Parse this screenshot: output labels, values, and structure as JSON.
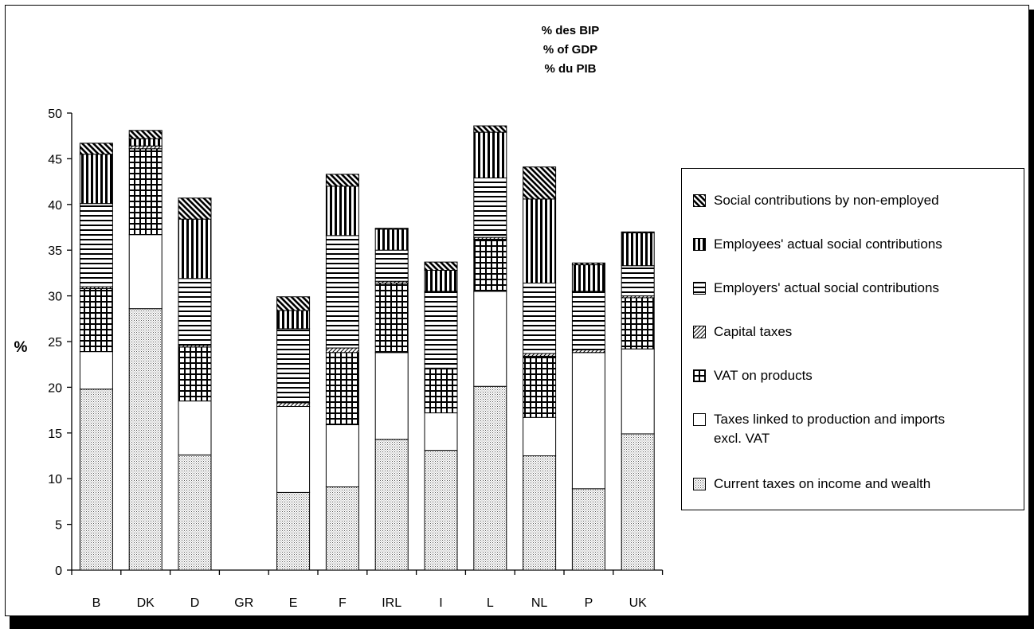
{
  "chart_data": {
    "type": "bar",
    "stacked": true,
    "title_lines": [
      "% des BIP",
      "% of GDP",
      "% du PIB"
    ],
    "ylabel": "%",
    "xlabel": "",
    "ylim": [
      0,
      50
    ],
    "yticks": [
      0,
      5,
      10,
      15,
      20,
      25,
      30,
      35,
      40,
      45,
      50
    ],
    "grid": false,
    "legend_position": "right",
    "categories": [
      "B",
      "DK",
      "D",
      "GR",
      "E",
      "F",
      "IRL",
      "I",
      "L",
      "NL",
      "P",
      "UK"
    ],
    "series": [
      {
        "name": "Current taxes on income and wealth",
        "pattern": "dots",
        "values": [
          19.8,
          28.6,
          12.6,
          0,
          8.5,
          9.1,
          14.3,
          13.1,
          20.1,
          12.5,
          8.9,
          14.9
        ]
      },
      {
        "name": "Taxes linked to production and imports excl. VAT",
        "pattern": "blank",
        "values": [
          4.1,
          8.1,
          5.9,
          0,
          9.4,
          6.8,
          9.5,
          4.1,
          10.4,
          4.2,
          14.9,
          9.3
        ]
      },
      {
        "name": "VAT on products",
        "pattern": "grid",
        "values": [
          6.9,
          9.4,
          5.9,
          0,
          0,
          7.9,
          7.6,
          4.8,
          5.7,
          6.7,
          0,
          5.6
        ]
      },
      {
        "name": "Capital taxes",
        "pattern": "diag-thin",
        "values": [
          0.2,
          0.3,
          0.2,
          0,
          0.4,
          0.5,
          0.2,
          0.1,
          0.2,
          0.3,
          0.3,
          0.2
        ]
      },
      {
        "name": "Employers' actual social contributions",
        "pattern": "hlines",
        "values": [
          9.1,
          0,
          7.3,
          0,
          8.1,
          12.3,
          3.4,
          8.4,
          6.5,
          7.7,
          6.4,
          3.3
        ]
      },
      {
        "name": "Employees' actual social contributions",
        "pattern": "vlines",
        "values": [
          5.4,
          0.8,
          6.5,
          0,
          2.0,
          5.4,
          2.3,
          2.3,
          5.0,
          9.2,
          2.9,
          3.6
        ]
      },
      {
        "name": "Social contributions by non-employed",
        "pattern": "diag-thick",
        "values": [
          1.2,
          0.9,
          2.3,
          0,
          1.5,
          1.3,
          0.1,
          0.9,
          0.7,
          3.5,
          0.2,
          0.1
        ]
      }
    ]
  },
  "legend_order": [
    6,
    5,
    4,
    3,
    2,
    1,
    0
  ],
  "legend_lines": {
    "1": [
      "Taxes linked to production and imports",
      "excl. VAT"
    ]
  }
}
